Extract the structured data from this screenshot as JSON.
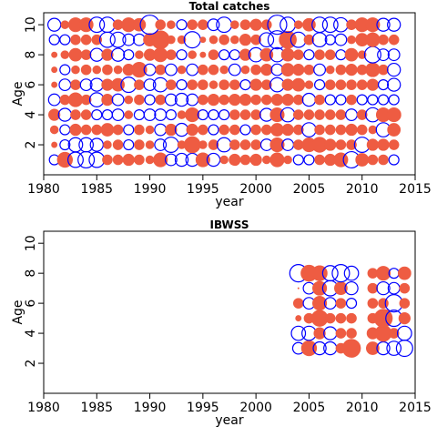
{
  "chart_data": [
    {
      "type": "scatter",
      "title": "Total catches",
      "xlabel": "year",
      "ylabel": "Age",
      "xlim": [
        1980,
        2015
      ],
      "ylim": [
        0,
        10.8
      ],
      "xticks": [
        "1980",
        "1985",
        "1990",
        "1995",
        "2000",
        "2005",
        "2010",
        "2015"
      ],
      "yticks": [
        "2",
        "4",
        "6",
        "8",
        "10"
      ],
      "grid": false,
      "series": [
        {
          "name": "positive",
          "color": "#EE5C42",
          "filled": true
        },
        {
          "name": "negative",
          "color": "#0000FF",
          "filled": false
        }
      ],
      "years": [
        1981,
        1982,
        1983,
        1984,
        1985,
        1986,
        1987,
        1988,
        1989,
        1990,
        1991,
        1992,
        1993,
        1994,
        1995,
        1996,
        1997,
        1998,
        1999,
        2000,
        2001,
        2002,
        2003,
        2004,
        2005,
        2006,
        2007,
        2008,
        2009,
        2010,
        2011,
        2012,
        2013
      ],
      "residuals": {
        "10": [
          -0.5,
          0.2,
          0.6,
          0.6,
          -0.7,
          -0.7,
          0.3,
          0.6,
          0.5,
          -1.1,
          0.3,
          0.2,
          -0.3,
          0.3,
          0.3,
          -0.4,
          -0.7,
          0.2,
          0.3,
          0.4,
          0.3,
          -1.1,
          -0.7,
          0.2,
          0.5,
          -0.7,
          -0.7,
          -0.6,
          0.3,
          0.6,
          0.6,
          -0.5,
          -0.5
        ],
        "9": [
          -0.3,
          -0.3,
          0.3,
          0.3,
          0.3,
          -0.7,
          -0.7,
          -0.4,
          -0.4,
          0.5,
          1.0,
          0.2,
          0.2,
          -0.8,
          0.1,
          0.2,
          0.3,
          0.2,
          0.4,
          0.3,
          -0.6,
          -1.0,
          0.9,
          -0.7,
          0.3,
          -0.6,
          -0.3,
          -0.4,
          0.2,
          0.5,
          0.6,
          0.3,
          0.3
        ],
        "8": [
          0.1,
          0.2,
          0.5,
          0.3,
          -0.5,
          0.4,
          -0.5,
          -0.3,
          0.2,
          0.4,
          0.6,
          0.3,
          -0.3,
          0.2,
          0.1,
          0.3,
          -0.3,
          -0.3,
          0.4,
          -0.6,
          0.5,
          -0.6,
          0.5,
          0.3,
          -0.3,
          0.3,
          0.3,
          -0.3,
          0.5,
          0.2,
          -0.8,
          -0.4,
          -0.4
        ],
        "7": [
          0.1,
          -0.3,
          0.2,
          0.3,
          0.2,
          0.3,
          0.2,
          0.4,
          0.7,
          -0.4,
          0.3,
          -0.4,
          0.2,
          -0.4,
          0.3,
          0.3,
          0.2,
          -0.4,
          0.2,
          0.3,
          0.4,
          -0.4,
          0.5,
          0.4,
          0.3,
          -0.4,
          0.2,
          0.3,
          0.4,
          0.3,
          0.6,
          0.3,
          -0.5
        ],
        "6": [
          0.1,
          -0.4,
          0.3,
          -0.4,
          -0.5,
          0.4,
          0.5,
          -0.7,
          0.3,
          -0.4,
          -0.6,
          0.3,
          -0.3,
          0.3,
          0.3,
          0.2,
          0.3,
          0.3,
          -0.3,
          0.4,
          0.3,
          -0.6,
          0.4,
          0.5,
          0.2,
          -0.3,
          0.3,
          0.3,
          0.3,
          0.3,
          0.4,
          -0.3,
          -0.5
        ],
        "5": [
          -0.4,
          0.3,
          0.6,
          0.3,
          -0.6,
          0.4,
          -0.4,
          0.2,
          0.3,
          -0.3,
          0.3,
          -0.4,
          -0.5,
          -0.4,
          0.3,
          0.4,
          0.3,
          0.4,
          0.4,
          0.3,
          0.3,
          0.4,
          0.4,
          0.3,
          -0.5,
          0.3,
          -0.3,
          -0.3,
          0.3,
          -0.3,
          -0.3,
          -0.3,
          -0.3
        ],
        "4": [
          0.4,
          -0.5,
          0.3,
          0.3,
          -0.3,
          -0.3,
          -0.4,
          0.2,
          -0.3,
          -0.4,
          -0.4,
          -0.3,
          0.2,
          0.6,
          -0.3,
          -0.3,
          -0.3,
          0.3,
          0.3,
          0.3,
          -0.5,
          0.6,
          -0.6,
          0.3,
          0.3,
          0.3,
          0.3,
          0.3,
          -0.4,
          0.3,
          -0.6,
          0.6,
          0.6
        ],
        "3": [
          0.2,
          -0.3,
          0.4,
          0.3,
          0.3,
          0.5,
          0.3,
          -0.3,
          0.3,
          0.2,
          -0.4,
          0.4,
          -0.5,
          0.4,
          0.3,
          -0.3,
          0.3,
          0.3,
          -0.3,
          0.3,
          0.3,
          0.5,
          0.4,
          0.3,
          -0.6,
          0.3,
          0.3,
          0.3,
          0.4,
          0.3,
          0.2,
          -0.6,
          0.5
        ],
        "2": [
          0.1,
          -0.3,
          -0.6,
          -0.6,
          -0.5,
          0.2,
          0.3,
          -0.3,
          0.3,
          0.2,
          -0.4,
          -0.7,
          0.2,
          0.8,
          0.2,
          0.3,
          -0.6,
          0.3,
          0.3,
          0.3,
          -0.4,
          0.6,
          -0.4,
          0.3,
          0.6,
          0.7,
          0.4,
          0.3,
          0.3,
          -0.7,
          0.4,
          0.4,
          0.3
        ],
        "1": [
          -0.3,
          0.7,
          -0.7,
          -0.8,
          -0.7,
          0.3,
          0.3,
          0.4,
          0.3,
          0.2,
          0.6,
          -0.4,
          -0.5,
          -0.5,
          0.6,
          -0.5,
          0.2,
          0.4,
          0.3,
          0.4,
          0.2,
          0.6,
          0.2,
          -0.3,
          -0.3,
          0.3,
          0.4,
          0.6,
          -0.8,
          0.5,
          0.3,
          0.3,
          -0.3
        ]
      }
    },
    {
      "type": "scatter",
      "title": "IBWSS",
      "xlabel": "year",
      "ylabel": "Age",
      "xlim": [
        1980,
        2015
      ],
      "ylim": [
        0,
        10.8
      ],
      "xticks": [
        "1980",
        "1985",
        "1990",
        "1995",
        "2000",
        "2005",
        "2010",
        "2015"
      ],
      "yticks": [
        "2",
        "4",
        "6",
        "8",
        "10"
      ],
      "grid": false,
      "series": [
        {
          "name": "positive",
          "color": "#EE5C42",
          "filled": true
        },
        {
          "name": "negative",
          "color": "#0000FF",
          "filled": false
        }
      ],
      "years": [
        2004,
        2005,
        2006,
        2007,
        2008,
        2009,
        2011,
        2012,
        2013,
        2014
      ],
      "residuals": {
        "8": [
          -0.9,
          0.8,
          0.7,
          -0.7,
          -0.9,
          -0.6,
          0.3,
          0.6,
          -0.3,
          0.5
        ],
        "7": [
          0.0,
          -0.4,
          0.6,
          -0.7,
          0.5,
          -0.5,
          0.3,
          -0.5,
          -0.4,
          0.3
        ],
        "6": [
          0.3,
          -0.4,
          0.6,
          -0.4,
          0.3,
          -0.3,
          0.3,
          0.3,
          -0.9,
          0.3
        ],
        "5": [
          0.1,
          0.3,
          0.8,
          0.3,
          0.3,
          0.3,
          0.3,
          1.0,
          -0.8,
          0.4
        ],
        "4": [
          -0.6,
          -0.6,
          0.4,
          -0.5,
          0.3,
          0.3,
          0.4,
          0.8,
          0.3,
          -0.6
        ],
        "3": [
          -0.4,
          0.7,
          -0.5,
          -0.5,
          0.3,
          1.0,
          0.5,
          -0.5,
          -0.6,
          -0.8
        ]
      }
    }
  ]
}
